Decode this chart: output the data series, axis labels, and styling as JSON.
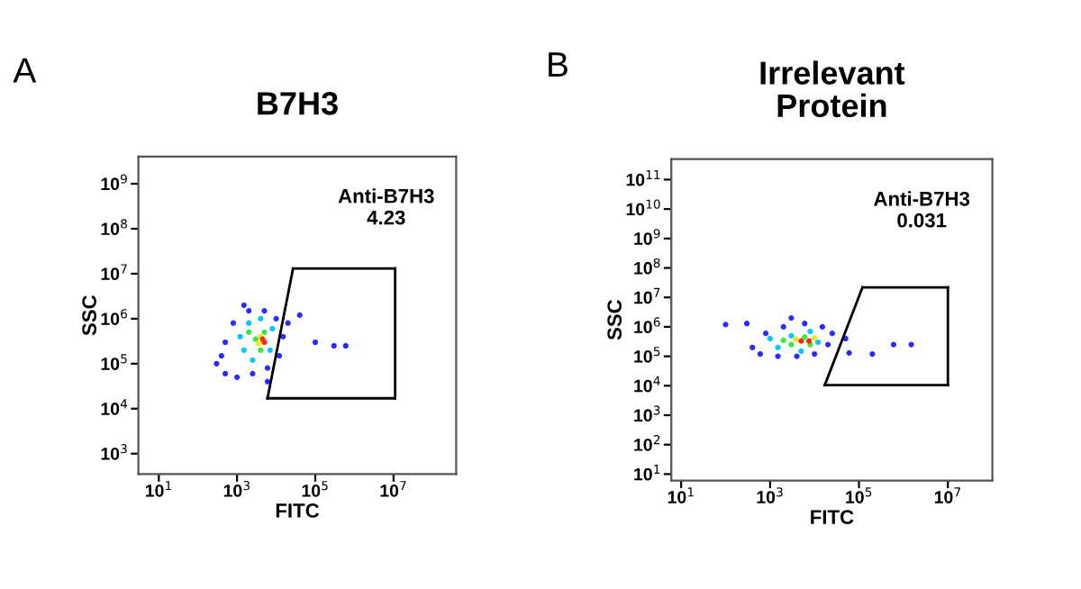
{
  "chart_data": [
    {
      "type": "scatter",
      "title": "B7H3",
      "xlabel": "FITC",
      "ylabel": "SSC",
      "annotations": [
        "A",
        "Anti-B7H3\n4.23"
      ],
      "log": "xy",
      "marker": "circle",
      "grid": false,
      "legend": false,
      "xlim": [
        3,
        400000000.0
      ],
      "ylim": [
        350,
        4000000000.0
      ],
      "xticks": [
        {
          "value": 10,
          "label": "10$^{1}$"
        },
        {
          "value": 1000,
          "label": "10$^{3}$"
        },
        {
          "value": 100000,
          "label": "10$^{5}$"
        },
        {
          "value": 10000000,
          "label": "10$^{7}$"
        }
      ],
      "yticks": [
        {
          "value": 1000,
          "label": "10$^{3}$"
        },
        {
          "value": 10000,
          "label": "10$^{4}$"
        },
        {
          "value": 100000,
          "label": "10$^{5}$"
        },
        {
          "value": 1000000,
          "label": "10$^{6}$"
        },
        {
          "value": 10000000,
          "label": "10$^{7}$"
        },
        {
          "value": 100000000,
          "label": "10$^{8}$"
        },
        {
          "value": 1000000000,
          "label": "10$^{9}$"
        }
      ],
      "series": [
        {
          "color": "#2b2bff",
          "x": [
            300,
            500,
            1000,
            2500,
            6000,
            12000,
            15000,
            10000,
            5000,
            2000,
            800,
            500,
            400,
            20000,
            40000,
            100000,
            300000,
            600000,
            1500,
            6000
          ],
          "values": [
            100000,
            60000,
            50000,
            60000,
            80000,
            150000,
            400000,
            1000000,
            1500000,
            1500000,
            800000,
            300000,
            150000,
            800000,
            1200000,
            300000,
            250000,
            250000,
            2000000,
            40000
          ]
        },
        {
          "color": "#00c8ff",
          "x": [
            1500,
            2000,
            4000,
            8000,
            7000,
            2500,
            1200
          ],
          "values": [
            200000,
            800000,
            1000000,
            600000,
            200000,
            120000,
            400000
          ]
        },
        {
          "color": "#3ce63c",
          "x": [
            3000,
            5000,
            4000,
            2000
          ],
          "values": [
            350000,
            500000,
            200000,
            500000
          ]
        },
        {
          "color": "#f0e614",
          "x": [
            4000,
            3500
          ],
          "values": [
            400000,
            280000
          ]
        },
        {
          "color": "#ff2a00",
          "x": [
            5000,
            4500
          ],
          "values": [
            300000,
            350000
          ]
        },
        {
          "type": "line",
          "marker": "none",
          "color": "#000000",
          "x": [
            6000,
            27000
          ],
          "values": [
            17000,
            13000000
          ]
        },
        {
          "type": "line",
          "marker": "none",
          "color": "#000000",
          "x": [
            27000,
            11000000
          ],
          "values": [
            13000000,
            13000000
          ]
        },
        {
          "type": "line",
          "marker": "none",
          "color": "#000000",
          "x": [
            6000,
            11000000
          ],
          "values": [
            17000,
            17000
          ]
        },
        {
          "type": "line",
          "marker": "none",
          "color": "#000000",
          "x": [
            11000000,
            11000000
          ],
          "values": [
            17000,
            13000000
          ]
        }
      ]
    },
    {
      "type": "scatter",
      "title": "Irrelevant\nProtein",
      "xlabel": "FITC",
      "ylabel": "SSC",
      "annotations": [
        "B",
        "Anti-B7H3\n0.031"
      ],
      "log": "xy",
      "marker": "circle",
      "grid": false,
      "legend": false,
      "xlim": [
        6,
        100000000.0
      ],
      "ylim": [
        6,
        500000000000.0
      ],
      "xticks": [
        {
          "value": 10,
          "label": "10$^{1}$"
        },
        {
          "value": 1000,
          "label": "10$^{3}$"
        },
        {
          "value": 100000,
          "label": "10$^{5}$"
        },
        {
          "value": 10000000,
          "label": "10$^{7}$"
        }
      ],
      "yticks": [
        {
          "value": 10,
          "label": "10$^{1}$"
        },
        {
          "value": 100,
          "label": "10$^{2}$"
        },
        {
          "value": 1000,
          "label": "10$^{3}$"
        },
        {
          "value": 10000,
          "label": "10$^{4}$"
        },
        {
          "value": 100000,
          "label": "10$^{5}$"
        },
        {
          "value": 1000000,
          "label": "10$^{6}$"
        },
        {
          "value": 10000000,
          "label": "10$^{7}$"
        },
        {
          "value": 100000000,
          "label": "10$^{8}$"
        },
        {
          "value": 1000000000,
          "label": "10$^{9}$"
        },
        {
          "value": 10000000000,
          "label": "10$^{10}$"
        },
        {
          "value": 100000000000,
          "label": "10$^{11}$"
        }
      ],
      "series": [
        {
          "color": "#2b2bff",
          "x": [
            400,
            600,
            1500,
            4000,
            10000,
            20000,
            25000,
            15000,
            6000,
            2000,
            800,
            100,
            300,
            3000,
            50000,
            200000,
            600000,
            1500000,
            60000
          ],
          "values": [
            200000,
            120000,
            100000,
            100000,
            120000,
            250000,
            600000,
            1000000,
            1300000,
            1000000,
            600000,
            1200000,
            1300000,
            2000000,
            400000,
            120000,
            250000,
            250000,
            130000
          ]
        },
        {
          "color": "#00c8ff",
          "x": [
            1500,
            3000,
            8000,
            12000,
            5000,
            1000
          ],
          "values": [
            200000,
            500000,
            700000,
            300000,
            150000,
            400000
          ]
        },
        {
          "color": "#3ce63c",
          "x": [
            3000,
            6000,
            8000,
            2000
          ],
          "values": [
            250000,
            450000,
            250000,
            350000
          ]
        },
        {
          "color": "#f0e614",
          "x": [
            3800,
            10000
          ],
          "values": [
            380000,
            420000
          ]
        },
        {
          "color": "#ff2a00",
          "x": [
            5000,
            7500
          ],
          "values": [
            330000,
            330000
          ]
        },
        {
          "type": "line",
          "marker": "none",
          "color": "#000000",
          "x": [
            17000,
            120000
          ],
          "values": [
            10500,
            22000000
          ]
        },
        {
          "type": "line",
          "marker": "none",
          "color": "#000000",
          "x": [
            120000,
            10000000
          ],
          "values": [
            22000000,
            22000000
          ]
        },
        {
          "type": "line",
          "marker": "none",
          "color": "#000000",
          "x": [
            17000,
            10000000
          ],
          "values": [
            10500,
            10500
          ]
        },
        {
          "type": "line",
          "marker": "none",
          "color": "#000000",
          "x": [
            10000000,
            10000000
          ],
          "values": [
            10500,
            22000000
          ]
        }
      ]
    }
  ]
}
